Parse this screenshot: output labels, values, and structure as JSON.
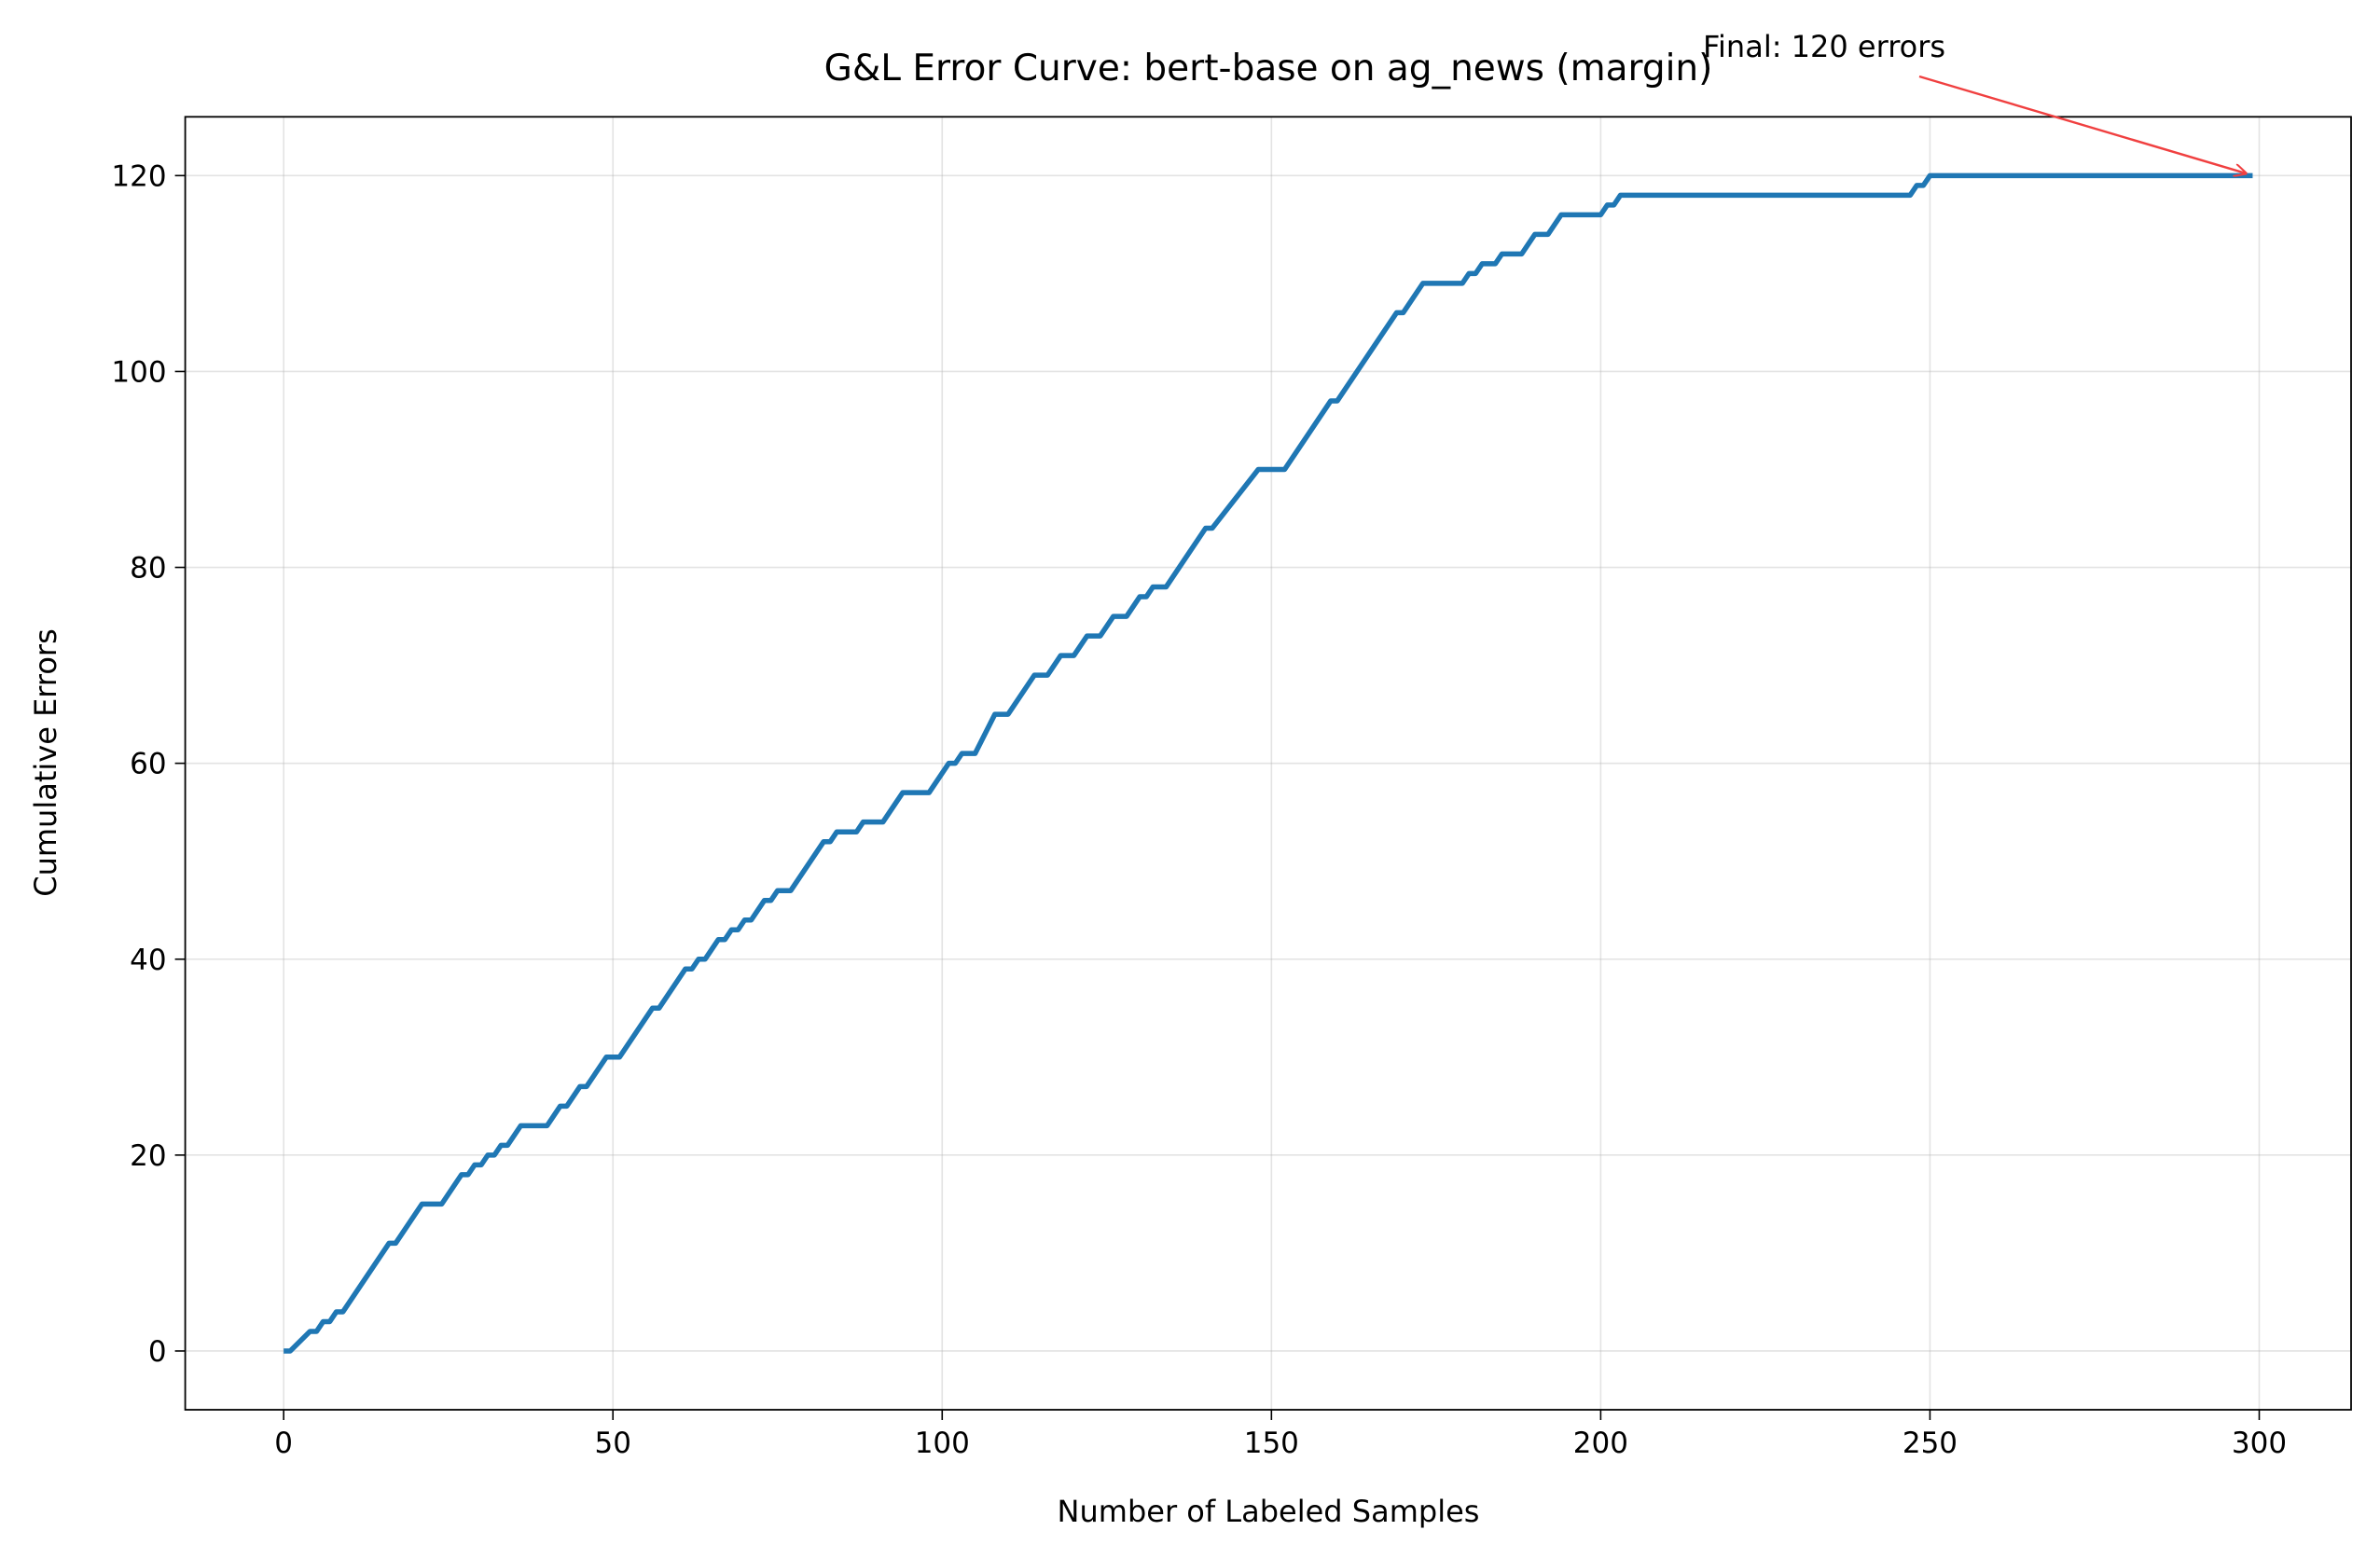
{
  "chart_data": {
    "type": "line",
    "title": "G&L Error Curve: bert-base on ag_news (margin)",
    "xlabel": "Number of Labeled Samples",
    "ylabel": "Cumulative Errors",
    "annotation": "Final: 120 errors",
    "annotation_color": "#f04040",
    "grid": true,
    "xlim": [
      -14.95,
      313.95
    ],
    "ylim": [
      -6,
      126
    ],
    "xticks": [
      0,
      50,
      100,
      150,
      200,
      250,
      300
    ],
    "yticks": [
      0,
      20,
      40,
      60,
      80,
      100,
      120
    ],
    "series": [
      {
        "name": "Cumulative Errors",
        "color": "#1f77b4",
        "x": [
          0,
          1,
          4,
          5,
          6,
          7,
          8,
          9,
          16,
          17,
          21,
          24,
          27,
          28,
          29,
          30,
          31,
          32,
          33,
          34,
          36,
          40,
          42,
          43,
          45,
          46,
          49,
          51,
          56,
          57,
          61,
          62,
          63,
          64,
          66,
          67,
          68,
          69,
          70,
          71,
          73,
          74,
          75,
          77,
          82,
          83,
          84,
          87,
          88,
          91,
          94,
          98,
          101,
          102,
          103,
          105,
          108,
          110,
          114,
          116,
          118,
          120,
          122,
          124,
          126,
          128,
          130,
          131,
          132,
          134,
          140,
          141,
          148,
          152,
          159,
          160,
          169,
          170,
          173,
          179,
          180,
          181,
          182,
          184,
          185,
          188,
          190,
          192,
          194,
          200,
          201,
          202,
          203,
          247,
          248,
          249,
          250,
          299
        ],
        "values": [
          0,
          0,
          2,
          2,
          3,
          3,
          4,
          4,
          11,
          11,
          15,
          15,
          18,
          18,
          19,
          19,
          20,
          20,
          21,
          21,
          23,
          23,
          25,
          25,
          27,
          27,
          30,
          30,
          35,
          35,
          39,
          39,
          40,
          40,
          42,
          42,
          43,
          43,
          44,
          44,
          46,
          46,
          47,
          47,
          52,
          52,
          53,
          53,
          54,
          54,
          57,
          57,
          60,
          60,
          61,
          61,
          65,
          65,
          69,
          69,
          71,
          71,
          73,
          73,
          75,
          75,
          77,
          77,
          78,
          78,
          84,
          84,
          90,
          90,
          97,
          97,
          106,
          106,
          109,
          109,
          110,
          110,
          111,
          111,
          112,
          112,
          114,
          114,
          116,
          116,
          117,
          117,
          118,
          118,
          119,
          119,
          120,
          120
        ]
      }
    ]
  }
}
